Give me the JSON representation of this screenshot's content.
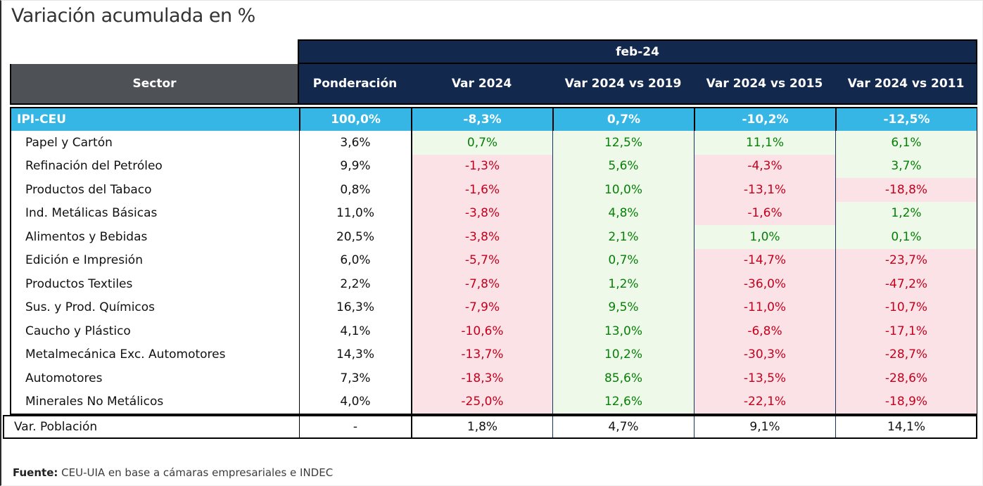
{
  "title": "Variación acumulada en %",
  "period_header": "feb-24",
  "table": {
    "columns": [
      "Sector",
      "Ponderación",
      "Var 2024",
      "Var 2024 vs 2019",
      "Var 2024 vs 2015",
      "Var 2024 vs 2011"
    ],
    "summary_row": {
      "sector": "IPI-CEU",
      "ponderacion": "100,0%",
      "values": [
        "-8,3%",
        "0,7%",
        "-10,2%",
        "-12,5%"
      ]
    },
    "rows": [
      {
        "sector": "Papel y Cartón",
        "ponderacion": "3,6%",
        "values": [
          "0,7%",
          "12,5%",
          "11,1%",
          "6,1%"
        ]
      },
      {
        "sector": "Refinación del Petróleo",
        "ponderacion": "9,9%",
        "values": [
          "-1,3%",
          "5,6%",
          "-4,3%",
          "3,7%"
        ]
      },
      {
        "sector": "Productos del Tabaco",
        "ponderacion": "0,8%",
        "values": [
          "-1,6%",
          "10,0%",
          "-13,1%",
          "-18,8%"
        ]
      },
      {
        "sector": "Ind. Metálicas Básicas",
        "ponderacion": "11,0%",
        "values": [
          "-3,8%",
          "4,8%",
          "-1,6%",
          "1,2%"
        ]
      },
      {
        "sector": "Alimentos y Bebidas",
        "ponderacion": "20,5%",
        "values": [
          "-3,8%",
          "2,1%",
          "1,0%",
          "0,1%"
        ]
      },
      {
        "sector": "Edición e Impresión",
        "ponderacion": "6,0%",
        "values": [
          "-5,7%",
          "0,7%",
          "-14,7%",
          "-23,7%"
        ]
      },
      {
        "sector": "Productos Textiles",
        "ponderacion": "2,2%",
        "values": [
          "-7,8%",
          "1,2%",
          "-36,0%",
          "-47,2%"
        ]
      },
      {
        "sector": "Sus. y Prod. Químicos",
        "ponderacion": "16,3%",
        "values": [
          "-7,9%",
          "9,5%",
          "-11,0%",
          "-10,7%"
        ]
      },
      {
        "sector": "Caucho y Plástico",
        "ponderacion": "4,1%",
        "values": [
          "-10,6%",
          "13,0%",
          "-6,8%",
          "-17,1%"
        ]
      },
      {
        "sector": "Metalmecánica Exc. Automotores",
        "ponderacion": "14,3%",
        "values": [
          "-13,7%",
          "10,2%",
          "-30,3%",
          "-28,7%"
        ]
      },
      {
        "sector": "Automotores",
        "ponderacion": "7,3%",
        "values": [
          "-18,3%",
          "85,6%",
          "-13,5%",
          "-28,6%"
        ]
      },
      {
        "sector": "Minerales No Metálicos",
        "ponderacion": "4,0%",
        "values": [
          "-25,0%",
          "12,6%",
          "-22,1%",
          "-18,9%"
        ]
      }
    ],
    "population_row": {
      "sector": "Var. Población",
      "ponderacion": "-",
      "values": [
        "1,8%",
        "4,7%",
        "9,1%",
        "14,1%"
      ]
    }
  },
  "footnote": {
    "label": "Fuente:",
    "text": " CEU-UIA en base a cámaras empresariales e INDEC"
  },
  "colors": {
    "navy": "#12294d",
    "cyan": "#35b6e5",
    "header_gray": "#4e5257",
    "positive_text": "#067f06",
    "positive_bg": "#eef9ea",
    "negative_text": "#c4001d",
    "negative_bg": "#fbe2e6"
  }
}
